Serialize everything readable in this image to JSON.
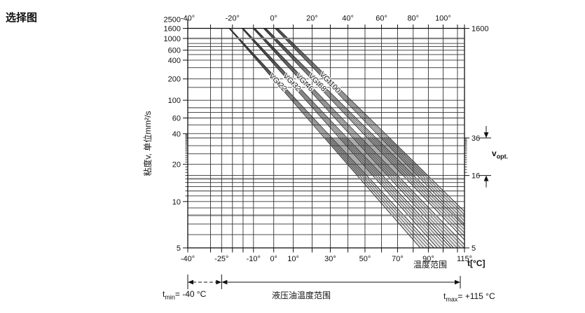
{
  "title": "选择图",
  "chart_data": {
    "type": "line",
    "title": "选择图",
    "x_axis": {
      "unit_label": "t[°C]",
      "scale": "log-kelvin",
      "range_c": [
        -40,
        115
      ],
      "top_tick_labels": [
        -40,
        -20,
        0,
        20,
        40,
        60,
        80,
        100
      ],
      "top_minor_ticks": [
        -40,
        -30,
        -20,
        -10,
        0,
        10,
        20,
        30,
        40,
        50,
        60,
        70,
        80,
        90,
        100,
        110
      ],
      "bottom_tick_labels": [
        -40,
        -25,
        -10,
        0,
        10,
        30,
        50,
        70,
        90,
        115
      ],
      "gridline_temps": [
        -30,
        -25,
        -20,
        -15,
        -10,
        0,
        10,
        20,
        30,
        40,
        50,
        60,
        70,
        80,
        90,
        100,
        110
      ],
      "degree_suffix": "°"
    },
    "y_axis": {
      "label": "粘度v, 单位mm²/s",
      "scale": "walther-loglog",
      "range": [
        5,
        2500
      ],
      "top_value_label": "2500",
      "tick_labels": [
        1600,
        1000,
        600,
        400,
        200,
        100,
        60,
        40,
        20,
        10,
        5
      ],
      "gridlines": [
        1000,
        800,
        700,
        600,
        500,
        400,
        300,
        200,
        150,
        100,
        80,
        70,
        60,
        50,
        40,
        36,
        30,
        25,
        20,
        16,
        15,
        14,
        13,
        12,
        11,
        10,
        9,
        8,
        7,
        6
      ],
      "emphasized": [
        1000,
        15,
        8
      ],
      "minor_tick_int_ranges": [
        [
          11,
          19
        ],
        [
          21,
          39
        ]
      ]
    },
    "right_axis": {
      "tick_labels": [
        1600,
        36,
        16,
        5
      ],
      "minor_tick_range": [
        17,
        35
      ]
    },
    "series": [
      {
        "name": "VG 22",
        "v40": 22,
        "v100": 4.0
      },
      {
        "name": "VG 32",
        "v40": 32,
        "v100": 5.1
      },
      {
        "name": "VG 46",
        "v40": 46,
        "v100": 6.5
      },
      {
        "name": "VG 68",
        "v40": 68,
        "v100": 8.6
      },
      {
        "name": "VG 100",
        "v40": 100,
        "v100": 11.0
      }
    ],
    "band_tolerance_pct": 10,
    "v_opt": {
      "min": 16,
      "max": 36
    }
  },
  "annotations": {
    "temp_range_label": "温度范围",
    "t_unit": "t[°C]",
    "v_opt": {
      "sym": "v",
      "sub": "opt."
    },
    "t_min": {
      "sym": "t",
      "sub": "min",
      "rest": "= -40 °C"
    },
    "t_max": {
      "sym": "t",
      "sub": "max",
      "rest": "= +115 °C"
    },
    "hydraulic_range_label": "液压油温度范围"
  },
  "colors": {
    "background": "#ffffff",
    "band_fill": "#e6e6e6",
    "band_edge": "#2f2f2f",
    "band_hatch": "#3c3c3c",
    "opt_overlay": "rgba(70,70,70,0.45)",
    "grid": "#333333",
    "grid_emphasis": "#888888",
    "frame": "#111111",
    "text": "#111111"
  }
}
